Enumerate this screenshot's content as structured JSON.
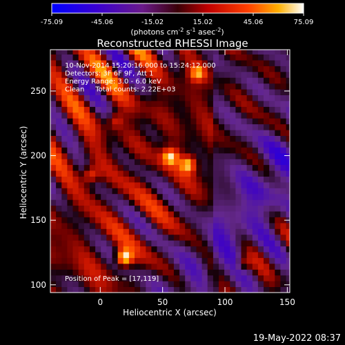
{
  "footer": {
    "date": "19-May-2022 08:37"
  },
  "colorbar": {
    "ticks": [
      "-75.09",
      "-45.06",
      "-15.02",
      "15.02",
      "45.06",
      "75.09"
    ],
    "label_prefix": "(photons cm",
    "label_sup1": "-2",
    "label_mid1": " s",
    "label_sup2": "-1",
    "label_mid2": " asec",
    "label_sup3": "-2",
    "label_suffix": ")",
    "min": -75.09,
    "max": 75.09
  },
  "chart_data": {
    "type": "heatmap",
    "title": "Reconstructed RHESSI Image",
    "xlabel": "Heliocentric X (arcsec)",
    "ylabel": "Heliocentric Y (arcsec)",
    "xlim": [
      -40,
      152
    ],
    "ylim": [
      94,
      282
    ],
    "xticks": [
      "0",
      "50",
      "100",
      "150"
    ],
    "yticks": [
      "100",
      "150",
      "200",
      "250"
    ],
    "annotations": [
      "10-Nov-2014 15:20:16.000 to 15:24:12.000",
      "Detectors: 3F 6F 9F, Att 1",
      "Energy Range: 3.0 - 6.0 keV",
      "Clean     Total counts: 2.22E+03"
    ],
    "peak_label": "Position of Peak = [17,119]",
    "peak": [
      17,
      119
    ],
    "hotspots": [
      {
        "x": 17,
        "y": 119,
        "value": 75.09
      },
      {
        "x": 54,
        "y": 197,
        "value": 60
      },
      {
        "x": 68,
        "y": 191,
        "value": 58
      },
      {
        "x": -10,
        "y": 183,
        "value": 38
      },
      {
        "x": 76,
        "y": 262,
        "value": 50
      },
      {
        "x": 112,
        "y": 114,
        "value": 30
      },
      {
        "x": 10,
        "y": 225,
        "value": 28
      }
    ]
  }
}
